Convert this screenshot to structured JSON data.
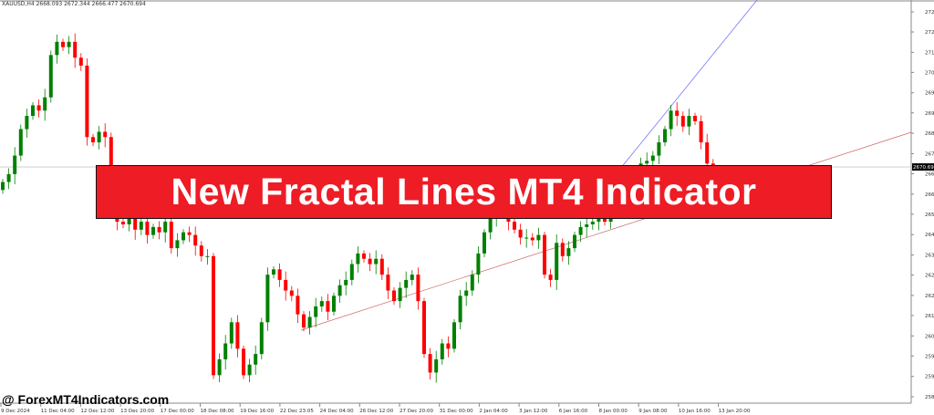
{
  "header": {
    "symbol_info": "XAUUSD,H4  2668.093 2672.344 2666.477 2670.694"
  },
  "banner": {
    "title": "New Fractal Lines MT4 Indicator"
  },
  "watermark": "@ ForexMT4Indicators.com",
  "colors": {
    "bull": "#008000",
    "bear": "#ff0000",
    "banner": "#ee1c25",
    "upper_line": "#6666ff",
    "lower_line": "#cc6666"
  },
  "chart_data": {
    "type": "candlestick",
    "symbol": "XAUUSD",
    "timeframe": "H4",
    "current_price": "2670.694",
    "ylim": [
      2583.845,
      2729.32
    ],
    "y_ticks": [
      "2729.320",
      "2721.730",
      "2714.025",
      "2706.435",
      "2698.730",
      "2691.140",
      "2683.435",
      "2675.730",
      "2668.140",
      "2660.435",
      "2652.845",
      "2645.140",
      "2637.435",
      "2629.845",
      "2622.140",
      "2614.550",
      "2606.845",
      "2599.255",
      "2591.550",
      "2583.845"
    ],
    "x_ticks": [
      "9 Dec 2024",
      "11 Dec 04:00",
      "12 Dec 12:00",
      "13 Dec 20:00",
      "17 Dec 00:00",
      "18 Dec 08:00",
      "19 Dec 16:00",
      "22 Dec 23:05",
      "24 Dec 04:00",
      "26 Dec 12:00",
      "27 Dec 20:00",
      "31 Dec 00:00",
      "2 Jan 04:00",
      "3 Jan 12:00",
      "6 Jan 16:00",
      "8 Jan 00:00",
      "9 Jan 08:00",
      "10 Jan 16:00",
      "13 Jan 20:00"
    ],
    "first_open": 2662,
    "closes": [
      2665,
      2668,
      2675,
      2685,
      2690,
      2694,
      2692,
      2697,
      2713,
      2718,
      2716,
      2718,
      2712,
      2709,
      2682,
      2680,
      2684,
      2682,
      2668,
      2650,
      2649,
      2652,
      2647,
      2650,
      2645,
      2648,
      2646,
      2650,
      2640,
      2643,
      2646,
      2645,
      2641,
      2637,
      2637,
      2592,
      2598,
      2604,
      2612,
      2602,
      2592,
      2596,
      2600,
      2612,
      2630,
      2632,
      2628,
      2624,
      2622,
      2615,
      2610,
      2614,
      2618,
      2620,
      2616,
      2622,
      2626,
      2628,
      2634,
      2638,
      2636,
      2634,
      2636,
      2630,
      2624,
      2620,
      2625,
      2628,
      2630,
      2620,
      2600,
      2593,
      2598,
      2604,
      2602,
      2612,
      2622,
      2624,
      2630,
      2638,
      2646,
      2652,
      2658,
      2655,
      2650,
      2647,
      2644,
      2644,
      2643,
      2645,
      2630,
      2628,
      2642,
      2637,
      2640,
      2645,
      2648,
      2649,
      2650,
      2652,
      2650,
      2656,
      2660,
      2665,
      2668,
      2670,
      2672,
      2673,
      2675,
      2680,
      2685,
      2692,
      2690,
      2686,
      2690,
      2688,
      2680,
      2672,
      2670.694
    ]
  }
}
